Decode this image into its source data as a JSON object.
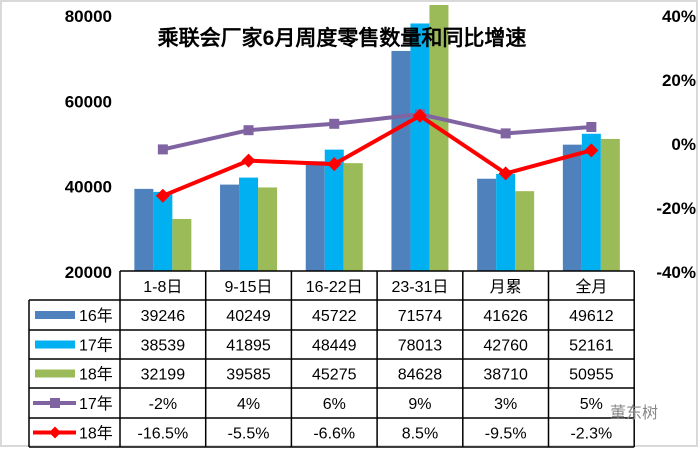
{
  "chart_data": {
    "type": "bar",
    "title": "乘联会厂家6月周度零售数量和同比增速",
    "categories": [
      "1-8日",
      "9-15日",
      "16-22日",
      "23-31日",
      "月累",
      "全月"
    ],
    "y_left": {
      "ticks": [
        "20000",
        "40000",
        "60000",
        "80000"
      ],
      "min": 20000,
      "max": 80000
    },
    "y_right": {
      "ticks": [
        "-40%",
        "-20%",
        "0%",
        "20%",
        "40%"
      ],
      "min": -40,
      "max": 40
    },
    "series": [
      {
        "name": "16年",
        "kind": "bar",
        "color": "#4f81bd",
        "values": [
          39246,
          40249,
          45722,
          71574,
          41626,
          49612
        ],
        "labels": [
          "39246",
          "40249",
          "45722",
          "71574",
          "41626",
          "49612"
        ]
      },
      {
        "name": "17年",
        "kind": "bar",
        "color": "#00b0f0",
        "values": [
          38539,
          41895,
          48449,
          78013,
          42760,
          52161
        ],
        "labels": [
          "38539",
          "41895",
          "48449",
          "78013",
          "42760",
          "52161"
        ]
      },
      {
        "name": "18年",
        "kind": "bar",
        "color": "#9bbb59",
        "values": [
          32199,
          39585,
          45275,
          84628,
          38710,
          50955
        ],
        "labels": [
          "32199",
          "39585",
          "45275",
          "84628",
          "38710",
          "50955"
        ]
      },
      {
        "name": "17年",
        "kind": "line",
        "color": "#8064a2",
        "marker": "square",
        "values": [
          -2,
          4,
          6,
          9,
          3,
          5
        ],
        "labels": [
          "-2%",
          "4%",
          "6%",
          "9%",
          "3%",
          "5%"
        ]
      },
      {
        "name": "18年",
        "kind": "line",
        "color": "#ff0000",
        "marker": "diamond",
        "values": [
          -16.5,
          -5.5,
          -6.6,
          8.5,
          -9.5,
          -2.3
        ],
        "labels": [
          "-16.5%",
          "-5.5%",
          "-6.6%",
          "8.5%",
          "-9.5%",
          "-2.3%"
        ]
      }
    ],
    "legend": "data-table"
  },
  "watermark": "董东树"
}
